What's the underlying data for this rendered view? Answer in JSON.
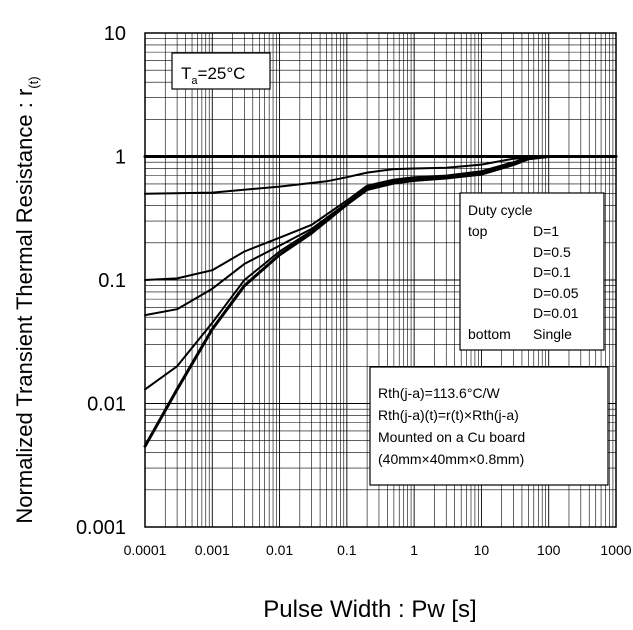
{
  "chart_data": {
    "type": "line",
    "xlabel": "Pulse Width : Pw [s]",
    "ylabel": "Normalized Transient Thermal Resistance : r",
    "ylabel_sub": "(t)",
    "x_scale": "log",
    "y_scale": "log",
    "xlim": [
      0.0001,
      1000
    ],
    "ylim": [
      0.001,
      10
    ],
    "grid": true,
    "x_ticks": [
      "0.0001",
      "0.001",
      "0.01",
      "0.1",
      "1",
      "10",
      "100",
      "1000"
    ],
    "y_ticks": [
      "0.001",
      "0.01",
      "0.1",
      "1",
      "10"
    ],
    "annotation_temp": {
      "main": "T",
      "sub": "a",
      "rest": "=25°C"
    },
    "legend": {
      "title": "Duty cycle",
      "top_label": "top",
      "bottom_label": "bottom",
      "entries": [
        "D=1",
        "D=0.5",
        "D=0.1",
        "D=0.05",
        "D=0.01",
        "Single"
      ]
    },
    "info": [
      "Rth(j-a)=113.6°C/W",
      "Rth(j-a)(t)=r(t)×Rth(j-a)",
      "Mounted on a Cu board",
      "(40mm×40mm×0.8mm)"
    ],
    "series": [
      {
        "name": "D=1",
        "x": [
          0.0001,
          1000
        ],
        "y": [
          1,
          1
        ]
      },
      {
        "name": "D=0.5",
        "x": [
          0.0001,
          0.001,
          0.01,
          0.05,
          0.1,
          0.2,
          0.5,
          1,
          3,
          10,
          30,
          100,
          1000
        ],
        "y": [
          0.5,
          0.51,
          0.57,
          0.63,
          0.68,
          0.74,
          0.79,
          0.8,
          0.81,
          0.86,
          0.96,
          1,
          1
        ]
      },
      {
        "name": "D=0.1",
        "x": [
          0.0001,
          0.0003,
          0.001,
          0.003,
          0.01,
          0.03,
          0.1,
          0.2,
          0.5,
          1,
          3,
          10,
          30,
          50,
          100,
          1000
        ],
        "y": [
          0.1,
          0.103,
          0.12,
          0.17,
          0.22,
          0.28,
          0.44,
          0.58,
          0.65,
          0.68,
          0.7,
          0.76,
          0.9,
          0.98,
          1,
          1
        ]
      },
      {
        "name": "D=0.05",
        "x": [
          0.0001,
          0.0003,
          0.001,
          0.003,
          0.01,
          0.03,
          0.1,
          0.2,
          0.5,
          1,
          3,
          10,
          30,
          50,
          100,
          1000
        ],
        "y": [
          0.052,
          0.058,
          0.085,
          0.135,
          0.19,
          0.26,
          0.42,
          0.56,
          0.63,
          0.66,
          0.69,
          0.74,
          0.88,
          0.97,
          1,
          1
        ]
      },
      {
        "name": "D=0.01",
        "x": [
          0.0001,
          0.0003,
          0.001,
          0.003,
          0.01,
          0.03,
          0.1,
          0.2,
          0.5,
          1,
          3,
          10,
          30,
          50,
          100,
          1000
        ],
        "y": [
          0.013,
          0.02,
          0.045,
          0.1,
          0.17,
          0.25,
          0.42,
          0.55,
          0.62,
          0.65,
          0.68,
          0.73,
          0.87,
          0.96,
          1,
          1
        ]
      },
      {
        "name": "Single",
        "x": [
          0.0001,
          0.0003,
          0.001,
          0.003,
          0.01,
          0.03,
          0.1,
          0.2,
          0.5,
          1,
          3,
          10,
          30,
          50,
          100,
          1000
        ],
        "y": [
          0.0045,
          0.013,
          0.04,
          0.09,
          0.16,
          0.24,
          0.41,
          0.54,
          0.61,
          0.64,
          0.67,
          0.72,
          0.86,
          0.96,
          1,
          1
        ]
      }
    ]
  }
}
